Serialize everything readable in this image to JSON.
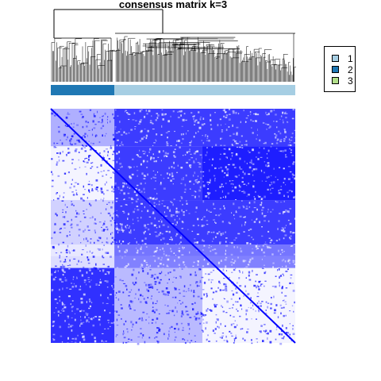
{
  "chart_data": {
    "type": "heatmap",
    "title": "consensus matrix k=3",
    "matrix_color": "#0000FF",
    "background_color": "#FFFFFF",
    "classes": [
      {
        "label": "1",
        "color": "#A6CEE3"
      },
      {
        "label": "2",
        "color": "#1F78B4"
      },
      {
        "label": "3",
        "color": "#B2DF8A"
      }
    ],
    "column_annotation": [
      {
        "class": "2",
        "fraction": 0.26
      },
      {
        "class": "1",
        "fraction": 0.74
      }
    ],
    "block_structure": [
      {
        "rows": [
          0,
          0.16
        ],
        "cols": [
          0,
          0.26
        ],
        "consensus": 0.35
      },
      {
        "rows": [
          0,
          0.16
        ],
        "cols": [
          0.26,
          1
        ],
        "consensus": 0.85
      },
      {
        "rows": [
          0.16,
          0.39
        ],
        "cols": [
          0,
          0.26
        ],
        "consensus": 0.05
      },
      {
        "rows": [
          0.16,
          0.39
        ],
        "cols": [
          0.26,
          0.62
        ],
        "consensus": 0.85
      },
      {
        "rows": [
          0.16,
          0.39
        ],
        "cols": [
          0.62,
          1
        ],
        "consensus": 0.98
      },
      {
        "rows": [
          0.39,
          0.58
        ],
        "cols": [
          0,
          0.26
        ],
        "consensus": 0.2
      },
      {
        "rows": [
          0.39,
          0.58
        ],
        "cols": [
          0.26,
          1
        ],
        "consensus": 0.85
      },
      {
        "rows": [
          0.58,
          0.63
        ],
        "cols": [
          0,
          0.26
        ],
        "consensus": 0.1
      },
      {
        "rows": [
          0.58,
          0.63
        ],
        "cols": [
          0.26,
          1
        ],
        "consensus": 0.6
      },
      {
        "rows": [
          0.63,
          0.68
        ],
        "cols": [
          0,
          0.26
        ],
        "consensus": 0.15
      },
      {
        "rows": [
          0.63,
          0.68
        ],
        "cols": [
          0.26,
          1
        ],
        "consensus": 0.55
      },
      {
        "rows": [
          0.68,
          1
        ],
        "cols": [
          0,
          0.26
        ],
        "consensus": 0.9
      },
      {
        "rows": [
          0.68,
          1
        ],
        "cols": [
          0.26,
          0.62
        ],
        "consensus": 0.3
      },
      {
        "rows": [
          0.68,
          1
        ],
        "cols": [
          0.62,
          1
        ],
        "consensus": 0.05
      }
    ],
    "legend_position": "right"
  }
}
